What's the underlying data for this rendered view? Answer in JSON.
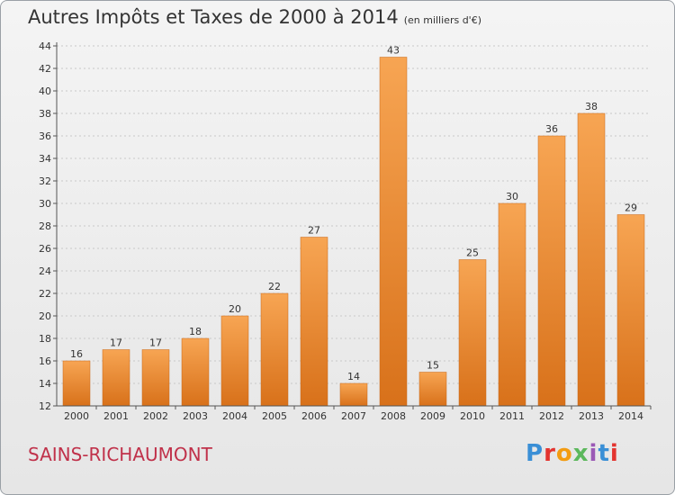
{
  "title": {
    "main": "Autres Impôts et Taxes de 2000 à 2014",
    "unit": "(en milliers d'€)"
  },
  "commune": "SAINS-RICHAUMONT",
  "logo": {
    "text": "Proxiti",
    "colors": [
      "#3a8fd6",
      "#e3342f",
      "#f39c12",
      "#5cb85c",
      "#9b59b6",
      "#3a8fd6",
      "#e3342f"
    ]
  },
  "colors": {
    "bar_light": "#f7a553",
    "bar_dark": "#d8711a",
    "axis": "#555555",
    "grid": "#c8c8c8",
    "commune": "#c0314a"
  },
  "chart_data": {
    "type": "bar",
    "title": "Autres Impôts et Taxes de 2000 à 2014",
    "subtitle": "(en milliers d'€)",
    "categories": [
      "2000",
      "2001",
      "2002",
      "2003",
      "2004",
      "2005",
      "2006",
      "2007",
      "2008",
      "2009",
      "2010",
      "2011",
      "2012",
      "2013",
      "2014"
    ],
    "values": [
      16,
      17,
      17,
      18,
      20,
      22,
      27,
      14,
      43,
      15,
      25,
      30,
      36,
      38,
      29
    ],
    "ylim": [
      12,
      44
    ],
    "yticks": [
      12,
      14,
      16,
      18,
      20,
      22,
      24,
      26,
      28,
      30,
      32,
      34,
      36,
      38,
      40,
      42,
      44
    ],
    "grid": true,
    "data_labels": true
  }
}
